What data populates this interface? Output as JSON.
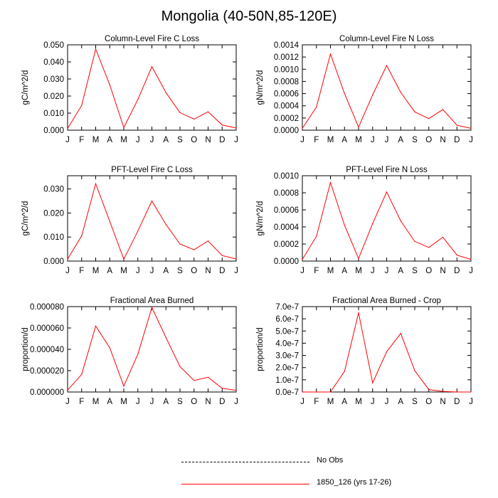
{
  "page": {
    "title": "Mongolia (40-50N,85-120E)"
  },
  "colors": {
    "series": "#ff0000",
    "axes": "#000000",
    "no_obs": "#000000"
  },
  "chart_data": [
    {
      "type": "line",
      "title": "Column-Level Fire C Loss",
      "ylabel": "gC/m^2/d",
      "ylim": [
        0,
        0.05
      ],
      "yticks": [
        "0.000",
        "0.010",
        "0.020",
        "0.030",
        "0.040",
        "0.050"
      ],
      "categories": [
        "J",
        "F",
        "M",
        "A",
        "M",
        "J",
        "J",
        "A",
        "S",
        "O",
        "N",
        "D",
        "J"
      ],
      "series": [
        {
          "name": "1850_126 (yrs 17-26)",
          "values": [
            0.001,
            0.0145,
            0.0475,
            0.0265,
            0.0015,
            0.018,
            0.0372,
            0.022,
            0.0103,
            0.0065,
            0.0108,
            0.003,
            0.0013
          ]
        }
      ]
    },
    {
      "type": "line",
      "title": "Column-Level Fire N Loss",
      "ylabel": "gN/m^2/d",
      "ylim": [
        0,
        0.0014
      ],
      "yticks": [
        "0.0000",
        "0.0002",
        "0.0004",
        "0.0006",
        "0.0008",
        "0.0010",
        "0.0012",
        "0.0014"
      ],
      "categories": [
        "J",
        "F",
        "M",
        "A",
        "M",
        "J",
        "J",
        "A",
        "S",
        "O",
        "N",
        "D",
        "J"
      ],
      "series": [
        {
          "name": "1850_126 (yrs 17-26)",
          "values": [
            3e-05,
            0.00038,
            0.00125,
            0.0006,
            5e-05,
            0.00058,
            0.00106,
            0.00062,
            0.0003,
            0.00019,
            0.00034,
            8e-05,
            3e-05
          ]
        }
      ]
    },
    {
      "type": "line",
      "title": "PFT-Level Fire C Loss",
      "ylabel": "gC/m^2/d",
      "ylim": [
        0,
        0.0355
      ],
      "yticks": [
        "0.000",
        "0.010",
        "0.020",
        "0.030"
      ],
      "categories": [
        "J",
        "F",
        "M",
        "A",
        "M",
        "J",
        "J",
        "A",
        "S",
        "O",
        "N",
        "D",
        "J"
      ],
      "series": [
        {
          "name": "1850_126 (yrs 17-26)",
          "values": [
            0.0008,
            0.0105,
            0.0322,
            0.0165,
            0.0008,
            0.0125,
            0.025,
            0.0152,
            0.0071,
            0.0047,
            0.0084,
            0.0023,
            0.0009
          ]
        }
      ]
    },
    {
      "type": "line",
      "title": "PFT-Level Fire N Loss",
      "ylabel": "gN/m^2/d",
      "ylim": [
        0,
        0.001
      ],
      "yticks": [
        "0.0000",
        "0.0002",
        "0.0004",
        "0.0006",
        "0.0008",
        "0.0010"
      ],
      "categories": [
        "J",
        "F",
        "M",
        "A",
        "M",
        "J",
        "J",
        "A",
        "S",
        "O",
        "N",
        "D",
        "J"
      ],
      "series": [
        {
          "name": "1850_126 (yrs 17-26)",
          "values": [
            2e-05,
            0.00029,
            0.00092,
            0.00042,
            3e-05,
            0.00044,
            0.00081,
            0.00047,
            0.00023,
            0.00016,
            0.00028,
            7e-05,
            2e-05
          ]
        }
      ]
    },
    {
      "type": "line",
      "title": "Fractional Area Burned",
      "ylabel": "proportion/d",
      "ylim": [
        0,
        8e-05
      ],
      "yticks": [
        "0.000000",
        "0.000020",
        "0.000040",
        "0.000060",
        "0.000080"
      ],
      "categories": [
        "J",
        "F",
        "M",
        "A",
        "M",
        "J",
        "J",
        "A",
        "S",
        "O",
        "N",
        "D",
        "J"
      ],
      "series": [
        {
          "name": "1850_126 (yrs 17-26)",
          "values": [
            1.8e-06,
            1.65e-05,
            6.18e-05,
            4.15e-05,
            5.5e-06,
            3.55e-05,
            7.92e-05,
            5.1e-05,
            2.38e-05,
            1.08e-05,
            1.38e-05,
            3.5e-06,
            1.5e-06
          ]
        }
      ]
    },
    {
      "type": "line",
      "title": "Fractional Area Burned - Crop",
      "ylabel": "proportion/d",
      "ylim": [
        0,
        7e-07
      ],
      "yticks": [
        "0.0e-7",
        "1.0e-7",
        "2.0e-7",
        "3.0e-7",
        "4.0e-7",
        "5.0e-7",
        "6.0e-7",
        "7.0e-7"
      ],
      "categories": [
        "J",
        "F",
        "M",
        "A",
        "M",
        "J",
        "J",
        "A",
        "S",
        "O",
        "N",
        "D",
        "J"
      ],
      "series": [
        {
          "name": "1850_126 (yrs 17-26)",
          "values": [
            0,
            0,
            0,
            1.7e-07,
            6.5e-07,
            7.5e-08,
            3.3e-07,
            4.8e-07,
            1.75e-07,
            2e-08,
            5e-09,
            0,
            0
          ]
        }
      ]
    }
  ],
  "legend": {
    "items": [
      {
        "label": "No Obs",
        "style": "dashed"
      },
      {
        "label": "1850_126 (yrs 17-26)",
        "style": "solid"
      }
    ]
  }
}
